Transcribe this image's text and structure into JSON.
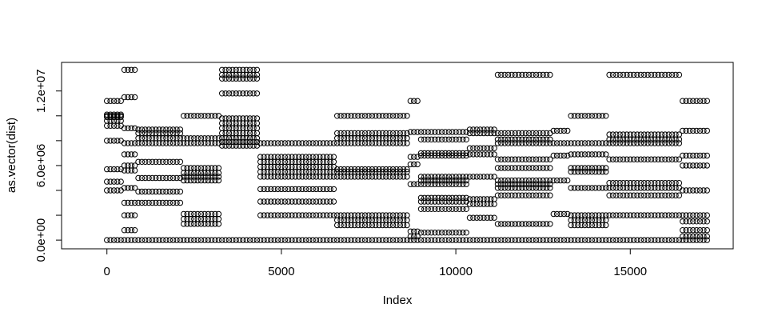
{
  "chart_data": {
    "type": "scatter",
    "xlabel": "Index",
    "ylabel": "as.vector(dist)",
    "xlim": [
      -1300,
      17950
    ],
    "ylim": [
      -700000,
      14300000
    ],
    "x_ticks": [
      0,
      5000,
      10000,
      15000
    ],
    "x_tick_labels": [
      "0",
      "5000",
      "10000",
      "15000"
    ],
    "y_ticks": [
      0,
      6000000,
      12000000
    ],
    "y_tick_labels": [
      "0.0e+00",
      "6.0e+06",
      "1.2e+07"
    ],
    "grid": false,
    "legend": "none",
    "marker": "open-circle",
    "point_step": 100,
    "segments": [
      {
        "x_start": 0,
        "x_end": 500,
        "levels": [
          0,
          4000000,
          4700000,
          5700000,
          8000000,
          9200000,
          9600000,
          9900000,
          10000000,
          10100000,
          11200000
        ]
      },
      {
        "x_start": 500,
        "x_end": 900,
        "levels": [
          0,
          800000,
          2000000,
          3000000,
          4200000,
          5600000,
          6000000,
          6900000,
          7800000,
          9000000,
          11500000,
          13700000
        ]
      },
      {
        "x_start": 900,
        "x_end": 2200,
        "levels": [
          0,
          3000000,
          3900000,
          5000000,
          6300000,
          7800000,
          8200000,
          8600000,
          8900000
        ]
      },
      {
        "x_start": 2200,
        "x_end": 3300,
        "levels": [
          0,
          1300000,
          1700000,
          2100000,
          4800000,
          5100000,
          5400000,
          5800000,
          7800000,
          8200000,
          10000000
        ]
      },
      {
        "x_start": 3300,
        "x_end": 4400,
        "levels": [
          0,
          7600000,
          7900000,
          8200000,
          8600000,
          9000000,
          9400000,
          9800000,
          11800000,
          13000000,
          13300000,
          13700000
        ]
      },
      {
        "x_start": 4400,
        "x_end": 6600,
        "levels": [
          0,
          2000000,
          3100000,
          4100000,
          5100000,
          5500000,
          5900000,
          6300000,
          6700000,
          7800000
        ]
      },
      {
        "x_start": 6600,
        "x_end": 8700,
        "levels": [
          0,
          1200000,
          1600000,
          2000000,
          5100000,
          5500000,
          5700000,
          7800000,
          8200000,
          8600000,
          10000000
        ]
      },
      {
        "x_start": 8700,
        "x_end": 9000,
        "levels": [
          0,
          300000,
          700000,
          4500000,
          6100000,
          6700000,
          8700000,
          11200000
        ]
      },
      {
        "x_start": 9000,
        "x_end": 10400,
        "levels": [
          0,
          600000,
          2500000,
          3100000,
          3400000,
          4500000,
          4800000,
          5100000,
          6800000,
          7000000,
          8100000,
          8700000
        ]
      },
      {
        "x_start": 10400,
        "x_end": 11200,
        "levels": [
          0,
          1800000,
          2900000,
          3300000,
          5100000,
          6900000,
          7400000,
          8600000,
          8900000
        ]
      },
      {
        "x_start": 11200,
        "x_end": 12800,
        "levels": [
          0,
          1300000,
          3600000,
          4200000,
          4500000,
          4800000,
          5800000,
          6500000,
          7800000,
          8100000,
          8600000,
          13300000
        ]
      },
      {
        "x_start": 12800,
        "x_end": 13300,
        "levels": [
          0,
          2100000,
          4800000,
          6800000,
          7800000,
          8800000
        ]
      },
      {
        "x_start": 13300,
        "x_end": 14400,
        "levels": [
          0,
          1200000,
          1600000,
          2000000,
          4200000,
          5500000,
          5800000,
          6900000,
          7800000,
          10000000
        ]
      },
      {
        "x_start": 14400,
        "x_end": 16500,
        "levels": [
          0,
          2000000,
          3600000,
          4200000,
          4600000,
          6500000,
          7800000,
          8100000,
          8500000,
          13300000
        ]
      },
      {
        "x_start": 16500,
        "x_end": 17250,
        "levels": [
          0,
          300000,
          800000,
          1500000,
          2000000,
          4000000,
          6000000,
          6800000,
          8800000,
          11200000
        ]
      }
    ]
  }
}
